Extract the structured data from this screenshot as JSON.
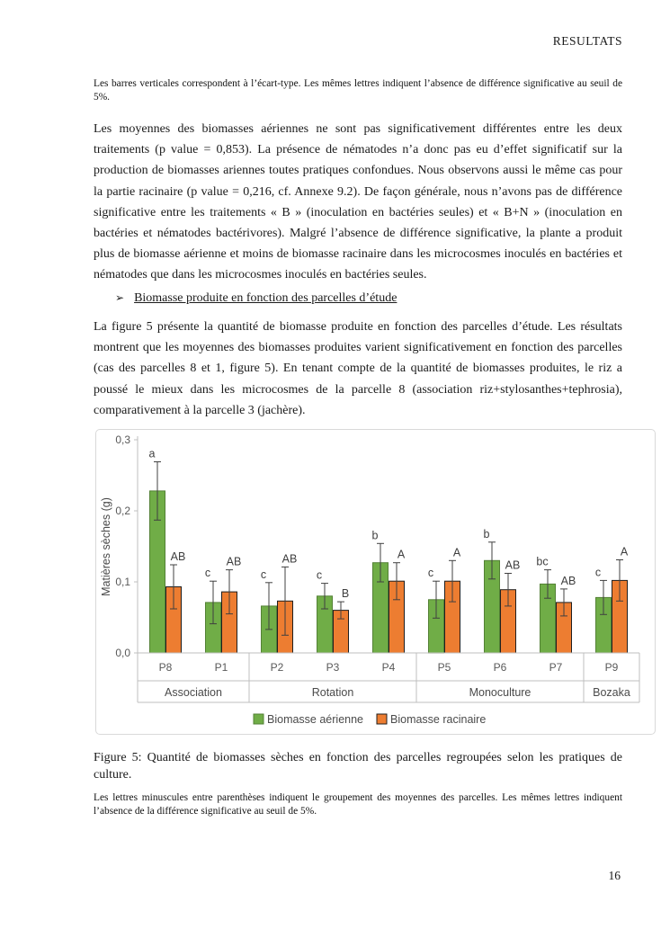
{
  "page": {
    "header": "RESULTATS",
    "note_top": "Les barres verticales correspondent à l’écart-type. Les mêmes lettres indiquent l’absence de différence significative au seuil de 5%.",
    "paragraph_1": "Les moyennes des biomasses aériennes ne sont pas significativement différentes entre les deux traitements (p value = 0,853). La présence de nématodes n’a donc pas eu d’effet significatif sur la production de biomasses ariennes toutes pratiques confondues. Nous observons aussi le même cas pour la partie racinaire (p value = 0,216, cf. Annexe 9.2). De façon générale, nous n’avons pas de différence significative entre les traitements « B » (inoculation en bactéries seules) et « B+N » (inoculation en bactéries et nématodes bactérivores). Malgré l’absence de différence significative, la plante a produit plus de biomasse aérienne et moins de biomasse racinaire dans les microcosmes inoculés en bactéries et nématodes que dans les microcosmes inoculés en bactéries seules.",
    "bullet_heading": {
      "marker": "➢",
      "text": "Biomasse produite en fonction des parcelles d’étude"
    },
    "paragraph_2": "La figure 5 présente la quantité de biomasse produite en fonction des parcelles d’étude. Les résultats montrent que les moyennes des biomasses produites varient significativement en fonction des parcelles (cas des parcelles 8 et 1, figure 5). En tenant compte de la quantité de biomasses produites, le riz a poussé le mieux dans les microcosmes de la parcelle 8 (association riz+stylosanthes+tephrosia), comparativement à la parcelle 3 (jachère).",
    "figure_caption": "Figure 5: Quantité de biomasses sèches en fonction des parcelles regroupées selon les pratiques de culture.",
    "note_bottom": "Les lettres minuscules entre parenthèses indiquent le groupement des moyennes des parcelles. Les mêmes lettres indiquent l’absence de la différence significative au seuil de 5%.",
    "page_number": "16"
  },
  "chart_data": {
    "type": "bar",
    "title": "",
    "ylabel": "Matières sèches (g)",
    "xlabel": "",
    "ylim": [
      0,
      0.3
    ],
    "ytick_values": [
      0,
      0.1,
      0.2,
      0.3
    ],
    "ytick_labels": [
      "0,0",
      "0,1",
      "0,2",
      "0,3"
    ],
    "grid": false,
    "legend_position": "bottom",
    "categories": [
      "P8",
      "P1",
      "P2",
      "P3",
      "P4",
      "P5",
      "P6",
      "P7",
      "P9"
    ],
    "groups": [
      {
        "label": "Association",
        "span": 2
      },
      {
        "label": "Rotation",
        "span": 3
      },
      {
        "label": "Monoculture",
        "span": 3
      },
      {
        "label": "Bozaka",
        "span": 1
      }
    ],
    "series": [
      {
        "name": "Biomasse aérienne",
        "color": "#70AD47",
        "border_color": "#538135",
        "values": [
          0.228,
          0.071,
          0.066,
          0.08,
          0.127,
          0.075,
          0.13,
          0.097,
          0.078
        ],
        "errors": [
          0.041,
          0.03,
          0.033,
          0.018,
          0.027,
          0.026,
          0.026,
          0.02,
          0.024
        ],
        "letters": [
          "a",
          "c",
          "c",
          "c",
          "b",
          "c",
          "b",
          "bc",
          "c"
        ]
      },
      {
        "name": "Biomasse racinaire",
        "color": "#ED7D31",
        "border_color": "#1f1f1f",
        "values": [
          0.093,
          0.086,
          0.073,
          0.06,
          0.101,
          0.101,
          0.089,
          0.071,
          0.102
        ],
        "errors": [
          0.031,
          0.031,
          0.048,
          0.012,
          0.026,
          0.029,
          0.023,
          0.019,
          0.029
        ],
        "letters": [
          "AB",
          "AB",
          "AB",
          "B",
          "A",
          "A",
          "AB",
          "AB",
          "A"
        ]
      }
    ]
  }
}
